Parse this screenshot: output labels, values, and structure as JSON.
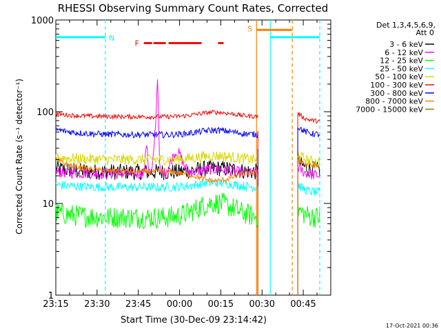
{
  "chart_data": {
    "type": "line",
    "title": "RHESSI Observing Summary Count Rates, Corrected",
    "xlabel": "Start Time (30-Dec-09 23:14:42)",
    "ylabel": "Corrected Count Rate (s⁻¹ detector⁻¹)",
    "y_scale": "log",
    "ylim": [
      1,
      1000
    ],
    "xlim_minutes": [
      0,
      100
    ],
    "x_ticks": [
      {
        "minute": 0,
        "label": "23:15"
      },
      {
        "minute": 15,
        "label": "23:30"
      },
      {
        "minute": 30,
        "label": "23:45"
      },
      {
        "minute": 45,
        "label": "00:00"
      },
      {
        "minute": 60,
        "label": "00:15"
      },
      {
        "minute": 75,
        "label": "00:30"
      },
      {
        "minute": 90,
        "label": "00:45"
      }
    ],
    "y_ticks": [
      {
        "value": 1,
        "label": "1"
      },
      {
        "value": 10,
        "label": "10"
      },
      {
        "value": 100,
        "label": "100"
      },
      {
        "value": 1000,
        "label": "1000"
      }
    ],
    "legend_header": [
      "Det 1,3,4,5,6,9,",
      "Att 0"
    ],
    "legend_position": "right",
    "series": [
      {
        "name": "3 - 6 keV",
        "color": "#000000",
        "level": 22,
        "edge": 24,
        "recover": 23,
        "hump": 0.1,
        "noise": 0.09,
        "flare": 0
      },
      {
        "name": "6 - 12 keV",
        "color": "#ff00ff",
        "level": 21,
        "edge": 22,
        "recover": 20,
        "hump": 0.12,
        "noise": 0.06,
        "flare": 1
      },
      {
        "name": "12 - 25 keV",
        "color": "#00ff00",
        "level": 7,
        "edge": 8,
        "recover": 7,
        "hump": 0.45,
        "noise": 0.12,
        "flare": 0
      },
      {
        "name": "25 - 50 keV",
        "color": "#00ffff",
        "level": 15,
        "edge": 16,
        "recover": 13,
        "hump": 0.12,
        "noise": 0.05,
        "flare": 0
      },
      {
        "name": "50 - 100 keV",
        "color": "#d7d700",
        "level": 30,
        "edge": 32,
        "recover": 28,
        "hump": 0.1,
        "noise": 0.06,
        "flare": 0
      },
      {
        "name": "100 - 300 keV",
        "color": "#ff0000",
        "level": 88,
        "edge": 95,
        "recover": 78,
        "hump": 0.12,
        "noise": 0.025,
        "flare": 0
      },
      {
        "name": "300 - 800 keV",
        "color": "#0000ff",
        "level": 56,
        "edge": 64,
        "recover": 56,
        "hump": 0.12,
        "noise": 0.035,
        "flare": 0
      },
      {
        "name": "800 - 7000 keV",
        "color": "#ff8000",
        "level": 22,
        "edge": 30,
        "recover": 25,
        "hump": -0.2,
        "noise": 0.03,
        "flare": 0
      },
      {
        "name": "7000 - 15000 keV",
        "color": "#808000",
        "level": 0,
        "edge": 0,
        "recover": 0,
        "hump": 0,
        "noise": 0,
        "flare": 0
      }
    ],
    "data_gap_minutes": [
      73.5,
      88.0
    ],
    "annotations": {
      "night_label": "N",
      "night_color": "#00ffff",
      "night_bars": [
        [
          0,
          18
        ],
        [
          78,
          96
        ]
      ],
      "night_lines": [
        18,
        78,
        96
      ],
      "saa_label": "S",
      "saa_color": "#ff8000",
      "saa_bars": [
        [
          73,
          86
        ]
      ],
      "saa_lines": [
        73,
        86
      ],
      "flare_label": "F",
      "flare_color": "#ff0000",
      "flare_bars": [
        [
          32,
          35
        ],
        [
          35.5,
          40
        ],
        [
          41,
          53
        ],
        [
          59,
          61
        ]
      ]
    }
  },
  "timestamp": "17-Oct-2021 00:36"
}
